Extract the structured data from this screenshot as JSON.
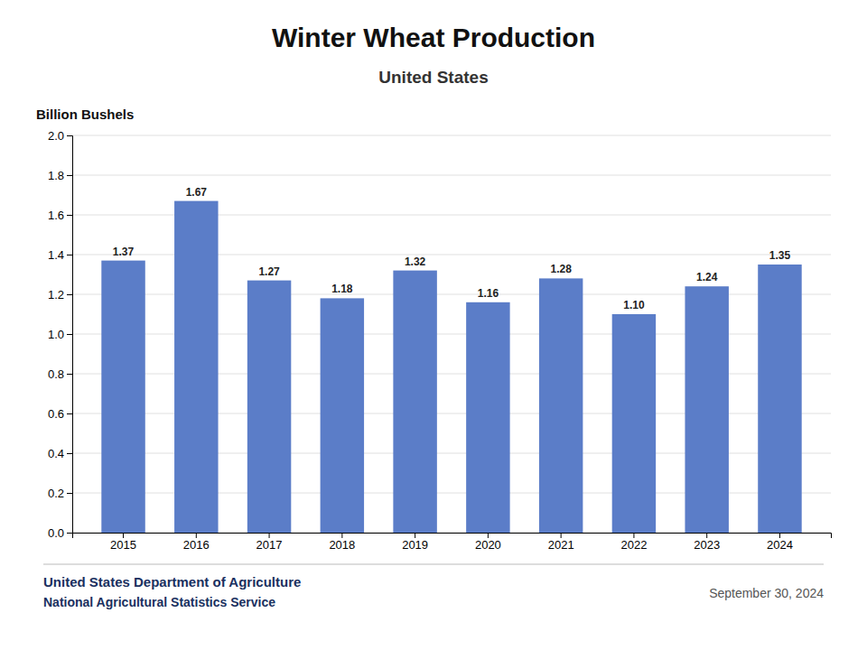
{
  "chart_data": {
    "type": "bar",
    "title": "Winter Wheat Production",
    "subtitle": "United States",
    "ylabel": "Billion Bushels",
    "categories": [
      "2015",
      "2016",
      "2017",
      "2018",
      "2019",
      "2020",
      "2021",
      "2022",
      "2023",
      "2024"
    ],
    "values": [
      1.37,
      1.67,
      1.27,
      1.18,
      1.32,
      1.16,
      1.28,
      1.1,
      1.24,
      1.35
    ],
    "value_labels": [
      "1.37",
      "1.67",
      "1.27",
      "1.18",
      "1.32",
      "1.16",
      "1.28",
      "1.10",
      "1.24",
      "1.35"
    ],
    "color": "#5b7dc8",
    "ylim": [
      0.0,
      2.0
    ],
    "yticks": [
      {
        "value": 0.0,
        "label": "0.0"
      },
      0.2,
      0.4,
      0.6,
      0.8,
      {
        "value": 1.0,
        "label": "1.0"
      },
      1.2,
      1.4,
      1.6,
      1.8,
      {
        "value": 2.0,
        "label": "2.0"
      }
    ],
    "grid": true,
    "data_labels": true,
    "annotations": [
      "United States Department of Agriculture",
      "National Agricultural Statistics Service",
      "September 30, 2024"
    ]
  }
}
